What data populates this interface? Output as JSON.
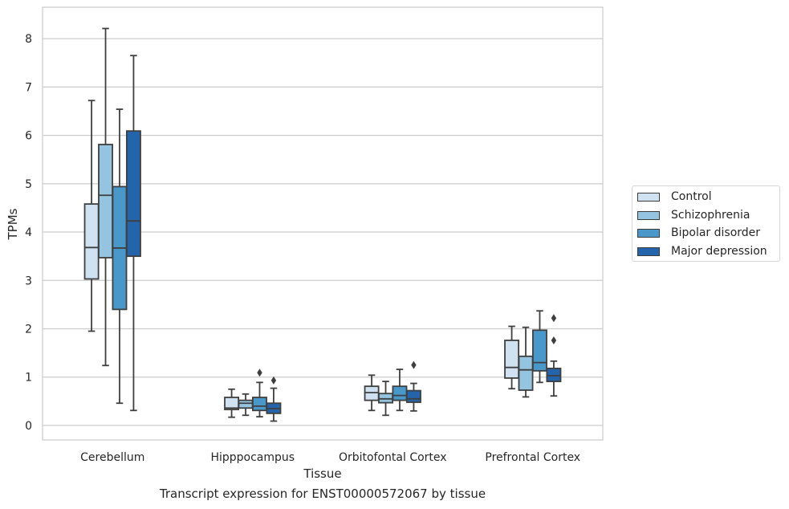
{
  "chart_data": {
    "type": "box",
    "caption": "Transcript expression for ENST00000572067 by tissue",
    "xlabel": "Tissue",
    "ylabel": "TPMs",
    "ylim": [
      -0.3,
      8.65
    ],
    "yticks": [
      0,
      1,
      2,
      3,
      4,
      5,
      6,
      7,
      8
    ],
    "grid": "horizontal",
    "legend_position": "right",
    "categories": [
      "Cerebellum",
      "Hipppocampus",
      "Orbitofontal Cortex",
      "Prefrontal Cortex"
    ],
    "series": [
      {
        "name": "Control",
        "color": "#d0e1f2",
        "boxes": [
          {
            "whisker_low": 1.95,
            "q1": 3.03,
            "median": 3.68,
            "q3": 4.58,
            "whisker_high": 6.72,
            "outliers": []
          },
          {
            "whisker_low": 0.17,
            "q1": 0.33,
            "median": 0.36,
            "q3": 0.58,
            "whisker_high": 0.75,
            "outliers": []
          },
          {
            "whisker_low": 0.31,
            "q1": 0.52,
            "median": 0.68,
            "q3": 0.81,
            "whisker_high": 1.04,
            "outliers": []
          },
          {
            "whisker_low": 0.76,
            "q1": 0.98,
            "median": 1.2,
            "q3": 1.76,
            "whisker_high": 2.05,
            "outliers": []
          }
        ]
      },
      {
        "name": "Schizophrenia",
        "color": "#94c4df",
        "boxes": [
          {
            "whisker_low": 1.24,
            "q1": 3.47,
            "median": 4.76,
            "q3": 5.81,
            "whisker_high": 8.21,
            "outliers": []
          },
          {
            "whisker_low": 0.21,
            "q1": 0.36,
            "median": 0.46,
            "q3": 0.52,
            "whisker_high": 0.65,
            "outliers": []
          },
          {
            "whisker_low": 0.21,
            "q1": 0.47,
            "median": 0.55,
            "q3": 0.66,
            "whisker_high": 0.91,
            "outliers": []
          },
          {
            "whisker_low": 0.59,
            "q1": 0.73,
            "median": 1.15,
            "q3": 1.43,
            "whisker_high": 2.03,
            "outliers": []
          }
        ]
      },
      {
        "name": "Bipolar disorder",
        "color": "#4a98c9",
        "boxes": [
          {
            "whisker_low": 0.46,
            "q1": 2.4,
            "median": 3.67,
            "q3": 4.94,
            "whisker_high": 6.54,
            "outliers": []
          },
          {
            "whisker_low": 0.18,
            "q1": 0.31,
            "median": 0.4,
            "q3": 0.58,
            "whisker_high": 0.89,
            "outliers": [
              1.09
            ]
          },
          {
            "whisker_low": 0.31,
            "q1": 0.52,
            "median": 0.62,
            "q3": 0.81,
            "whisker_high": 1.16,
            "outliers": []
          },
          {
            "whisker_low": 0.89,
            "q1": 1.13,
            "median": 1.3,
            "q3": 1.97,
            "whisker_high": 2.37,
            "outliers": []
          }
        ]
      },
      {
        "name": "Major depression",
        "color": "#2464ab",
        "boxes": [
          {
            "whisker_low": 0.31,
            "q1": 3.5,
            "median": 4.23,
            "q3": 6.09,
            "whisker_high": 7.65,
            "outliers": []
          },
          {
            "whisker_low": 0.09,
            "q1": 0.25,
            "median": 0.35,
            "q3": 0.46,
            "whisker_high": 0.77,
            "outliers": [
              0.93
            ]
          },
          {
            "whisker_low": 0.3,
            "q1": 0.48,
            "median": 0.55,
            "q3": 0.72,
            "whisker_high": 0.87,
            "outliers": [
              1.25
            ]
          },
          {
            "whisker_low": 0.61,
            "q1": 0.91,
            "median": 1.03,
            "q3": 1.18,
            "whisker_high": 1.33,
            "outliers": [
              1.76,
              2.22
            ]
          }
        ]
      }
    ]
  }
}
